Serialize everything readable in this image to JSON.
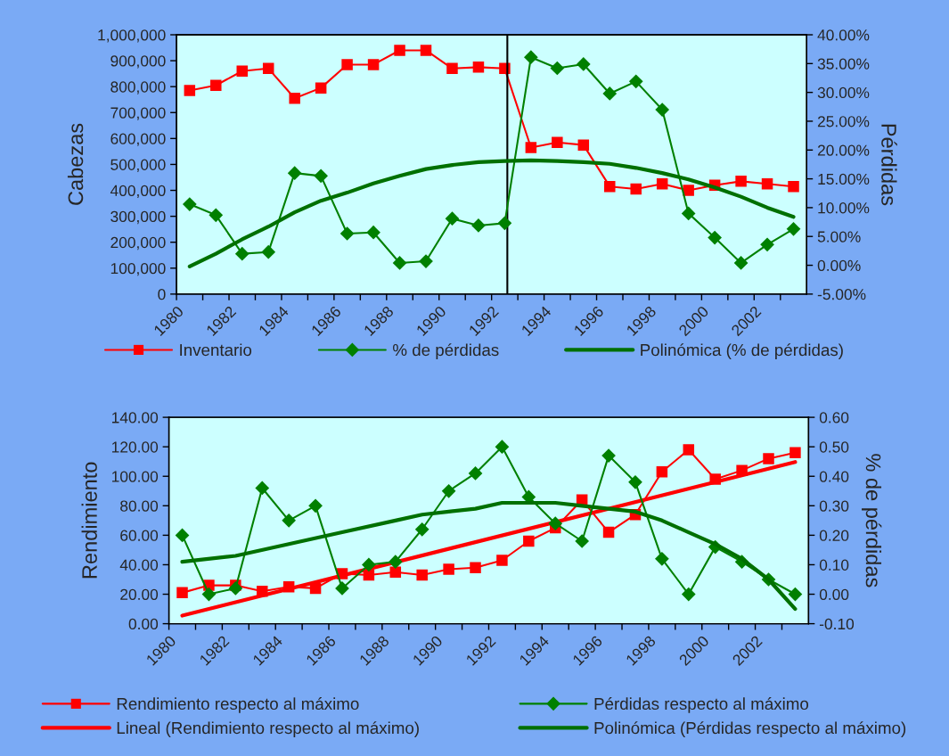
{
  "chart_data": [
    {
      "type": "line",
      "ylabel": "Cabezas",
      "y2label": "Pérdidas",
      "x": [
        1980.5,
        1981.5,
        1982.5,
        1983.5,
        1984.5,
        1985.5,
        1986.5,
        1987.5,
        1988.5,
        1989.5,
        1990.5,
        1991.5,
        1992.5,
        1993.5,
        1994.5,
        1995.5,
        1996.5,
        1997.5,
        1998.5,
        1999.5,
        2000.5,
        2001.5,
        2002.5,
        2003.5
      ],
      "xlim": [
        1980,
        2004
      ],
      "xticks": [
        1980,
        {
          "value": 1981,
          "label": null
        },
        1982,
        {
          "value": 1983,
          "label": null
        },
        1984,
        {
          "value": 1985,
          "label": null
        },
        1986,
        {
          "value": 1987,
          "label": null
        },
        1988,
        {
          "value": 1989,
          "label": null
        },
        1990,
        {
          "value": 1991,
          "label": null
        },
        1992,
        {
          "value": 1993,
          "label": null
        },
        1994,
        {
          "value": 1995,
          "label": null
        },
        1996,
        {
          "value": 1997,
          "label": null
        },
        1998,
        {
          "value": 1999,
          "label": null
        },
        2000,
        {
          "value": 2001,
          "label": null
        },
        2002,
        {
          "value": 2003,
          "label": null
        }
      ],
      "ylim": [
        0,
        1000000
      ],
      "yticks": [
        {
          "value": 0,
          "label": "0"
        },
        {
          "value": 100000,
          "label": "100,000"
        },
        {
          "value": 200000,
          "label": "200,000"
        },
        {
          "value": 300000,
          "label": "300,000"
        },
        {
          "value": 400000,
          "label": "400,000"
        },
        {
          "value": 500000,
          "label": "500,000"
        },
        {
          "value": 600000,
          "label": "600,000"
        },
        {
          "value": 700000,
          "label": "700,000"
        },
        {
          "value": 800000,
          "label": "800,000"
        },
        {
          "value": 900000,
          "label": "900,000"
        },
        {
          "value": 1000000,
          "label": "1,000,000"
        }
      ],
      "y2lim": [
        -5,
        40
      ],
      "y2ticks": [
        {
          "value": -5,
          "label": "-5.00%"
        },
        {
          "value": 0,
          "label": "0.00%"
        },
        {
          "value": 5,
          "label": "5.00%"
        },
        {
          "value": 10,
          "label": "10.00%"
        },
        {
          "value": 15,
          "label": "15.00%"
        },
        {
          "value": 20,
          "label": "20.00%"
        },
        {
          "value": 25,
          "label": "25.00%"
        },
        {
          "value": 30,
          "label": "30.00%"
        },
        {
          "value": 35,
          "label": "35.00%"
        },
        {
          "value": 40,
          "label": "40.00%"
        }
      ],
      "series": [
        {
          "name": "Inventario",
          "color": "#ff0000",
          "marker": "square",
          "values": [
            785000,
            805000,
            860000,
            870000,
            755000,
            795000,
            885000,
            885000,
            940000,
            940000,
            870000,
            875000,
            870000,
            565000,
            585000,
            575000,
            415000,
            405000,
            425000,
            400000,
            420000,
            435000,
            425000,
            415000
          ]
        },
        {
          "name": "% de pérdidas",
          "color": "#008000",
          "marker": "diamond",
          "axis": "y2",
          "values": [
            10.6,
            8.7,
            2.0,
            2.3,
            16.0,
            15.5,
            5.5,
            5.7,
            0.4,
            0.7,
            8.1,
            6.9,
            7.3,
            36.1,
            34.2,
            34.9,
            29.8,
            31.9,
            27.0,
            9.0,
            4.8,
            0.4,
            3.6,
            6.3
          ]
        },
        {
          "name": "Polinómica (% de pérdidas)",
          "color": "#007000",
          "marker": "none",
          "axis": "y2",
          "values": [
            -0.2,
            2.0,
            4.5,
            6.7,
            9.2,
            11.2,
            12.6,
            14.2,
            15.5,
            16.7,
            17.4,
            17.9,
            18.1,
            18.2,
            18.1,
            17.9,
            17.6,
            16.9,
            16.0,
            14.9,
            13.5,
            11.9,
            10.0,
            8.4
          ]
        }
      ],
      "ref_lines": [
        {
          "axis": "x",
          "value": 1992.6,
          "color": "#000000"
        }
      ],
      "legend": "bottom",
      "grid": false,
      "line_style": "solid"
    },
    {
      "type": "line",
      "ylabel": "Rendimiento",
      "y2label": "% de pérdidas",
      "x": [
        1980.5,
        1981.5,
        1982.5,
        1983.5,
        1984.5,
        1985.5,
        1986.5,
        1987.5,
        1988.5,
        1989.5,
        1990.5,
        1991.5,
        1992.5,
        1993.5,
        1994.5,
        1995.5,
        1996.5,
        1997.5,
        1998.5,
        1999.5,
        2000.5,
        2001.5,
        2002.5,
        2003.5
      ],
      "xlim": [
        1980,
        2004
      ],
      "xticks": [
        1980,
        {
          "value": 1981,
          "label": null
        },
        1982,
        {
          "value": 1983,
          "label": null
        },
        1984,
        {
          "value": 1985,
          "label": null
        },
        1986,
        {
          "value": 1987,
          "label": null
        },
        1988,
        {
          "value": 1989,
          "label": null
        },
        1990,
        {
          "value": 1991,
          "label": null
        },
        1992,
        {
          "value": 1993,
          "label": null
        },
        1994,
        {
          "value": 1995,
          "label": null
        },
        1996,
        {
          "value": 1997,
          "label": null
        },
        1998,
        {
          "value": 1999,
          "label": null
        },
        2000,
        {
          "value": 2001,
          "label": null
        },
        2002,
        {
          "value": 2003,
          "label": null
        }
      ],
      "ylim": [
        0,
        140
      ],
      "yticks": [
        {
          "value": 0,
          "label": "0.00"
        },
        {
          "value": 20,
          "label": "20.00"
        },
        {
          "value": 40,
          "label": "40.00"
        },
        {
          "value": 60,
          "label": "60.00"
        },
        {
          "value": 80,
          "label": "80.00"
        },
        {
          "value": 100,
          "label": "100.00"
        },
        {
          "value": 120,
          "label": "120.00"
        },
        {
          "value": 140,
          "label": "140.00"
        }
      ],
      "y2lim": [
        -0.1,
        0.6
      ],
      "y2ticks": [
        {
          "value": -0.1,
          "label": "-0.10"
        },
        {
          "value": 0,
          "label": "0.00"
        },
        {
          "value": 0.1,
          "label": "0.10"
        },
        {
          "value": 0.2,
          "label": "0.20"
        },
        {
          "value": 0.3,
          "label": "0.30"
        },
        {
          "value": 0.4,
          "label": "0.40"
        },
        {
          "value": 0.5,
          "label": "0.50"
        },
        {
          "value": 0.6,
          "label": "0.60"
        }
      ],
      "series": [
        {
          "name": "Rendimiento respecto al máximo",
          "color": "#ff0000",
          "marker": "square",
          "values": [
            21,
            26,
            26,
            22,
            25,
            24,
            34,
            33,
            35,
            33,
            37,
            38,
            43,
            56,
            65,
            84,
            62,
            74,
            103,
            118,
            98,
            104,
            112,
            116
          ]
        },
        {
          "name": "Pérdidas respecto al máximo",
          "color": "#008000",
          "marker": "diamond",
          "axis": "y2",
          "values": [
            0.2,
            0.0,
            0.02,
            0.36,
            0.25,
            0.3,
            0.02,
            0.1,
            0.11,
            0.22,
            0.35,
            0.41,
            0.5,
            0.33,
            0.24,
            0.18,
            0.47,
            0.38,
            0.12,
            0.0,
            0.16,
            0.11,
            0.05,
            0.0
          ]
        },
        {
          "name": "Lineal (Rendimiento respecto al máximo)",
          "color": "#ff0000",
          "marker": "none",
          "x": [
            1980.5,
            2003.5
          ],
          "values": [
            5.5,
            109.7
          ]
        },
        {
          "name": "Polinómica (Pérdidas respecto al máximo)",
          "color": "#007000",
          "marker": "none",
          "axis": "y2",
          "x": [
            1980.5,
            1982.5,
            1984.5,
            1986.5,
            1988.5,
            1989.5,
            1990.5,
            1991.5,
            1992.5,
            1993.5,
            1994.5,
            1995.5,
            1996.5,
            1997.5,
            1998.5,
            1999.5,
            2000.5,
            2001.5,
            2002.5,
            2003.5
          ],
          "values": [
            0.11,
            0.13,
            0.17,
            0.21,
            0.25,
            0.27,
            0.28,
            0.29,
            0.31,
            0.31,
            0.31,
            0.3,
            0.29,
            0.28,
            0.25,
            0.21,
            0.17,
            0.12,
            0.05,
            -0.05
          ]
        }
      ],
      "legend": "bottom",
      "grid": false,
      "line_style": "solid"
    }
  ]
}
